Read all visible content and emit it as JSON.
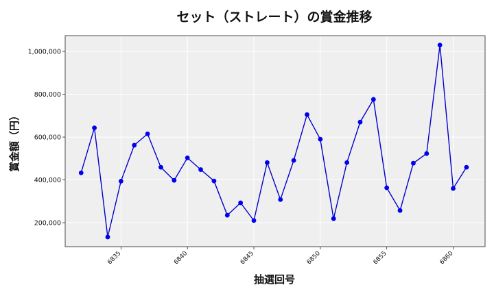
{
  "chart_data": {
    "type": "line",
    "title": "セット（ストレート）の賞金推移",
    "xlabel": "抽選回号",
    "ylabel": "賞金額（円）",
    "x": [
      6832,
      6833,
      6834,
      6835,
      6836,
      6837,
      6838,
      6839,
      6840,
      6841,
      6842,
      6843,
      6844,
      6845,
      6846,
      6847,
      6848,
      6849,
      6850,
      6851,
      6852,
      6853,
      6854,
      6855,
      6856,
      6857,
      6858,
      6859,
      6860,
      6861
    ],
    "series": [
      {
        "values": [
          433000,
          643000,
          133000,
          394000,
          562000,
          615000,
          459000,
          398000,
          503000,
          448000,
          395000,
          235000,
          293000,
          210000,
          481000,
          308000,
          491000,
          705000,
          590000,
          219000,
          481000,
          670000,
          776000,
          363000,
          257000,
          478000,
          523000,
          1030000,
          360000,
          459000
        ]
      }
    ],
    "xticks": [
      6835,
      6840,
      6845,
      6850,
      6855,
      6860
    ],
    "xtick_labels": [
      "6835",
      "6840",
      "6845",
      "6850",
      "6855",
      "6860"
    ],
    "yticks": [
      200000,
      400000,
      600000,
      800000,
      1000000
    ],
    "ytick_labels": [
      "200,000",
      "400,000",
      "600,000",
      "800,000",
      "1,000,000"
    ],
    "xlim": [
      6830.8,
      6862.4
    ],
    "ylim": [
      88000,
      1074000
    ],
    "grid": true,
    "colors": {
      "line": "#0000cc",
      "marker": "#0000ee",
      "plot_bg": "#efefef",
      "grid": "#ffffff"
    }
  }
}
